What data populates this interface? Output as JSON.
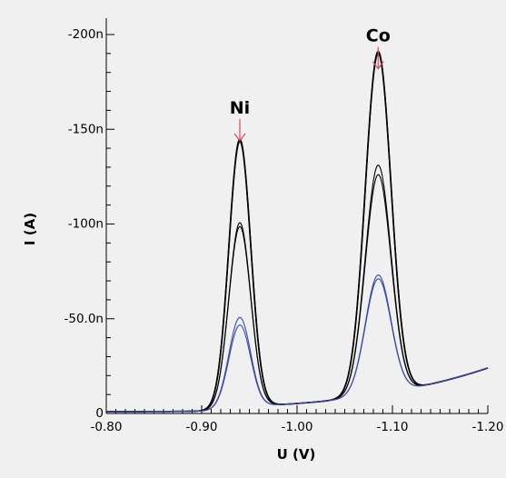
{
  "chart_data": {
    "type": "line",
    "xlabel": "U (V)",
    "ylabel": "I (A)",
    "xlim": [
      -0.8,
      -1.2
    ],
    "ylim": [
      0,
      -200
    ],
    "y_unit": "nA",
    "x_tick_labels": [
      "-0.80",
      "-0.90",
      "-1.00",
      "-1.10",
      "-1.20"
    ],
    "x_tick_values": [
      -0.8,
      -0.9,
      -1.0,
      -1.1,
      -1.2
    ],
    "y_tick_labels": [
      "0",
      "-50.0n",
      "-100n",
      "-150n",
      "-200n"
    ],
    "y_tick_values": [
      0,
      -50,
      -100,
      -150,
      -200
    ],
    "grid": false,
    "legend": "none",
    "annotations": [
      {
        "text": "Ni",
        "x": -0.94,
        "y": -143,
        "color": "#e0455a"
      },
      {
        "text": "Co",
        "x": -1.085,
        "y": -181,
        "color": "#e0455a"
      }
    ],
    "series": [
      {
        "color": "#000000",
        "peak1": -143,
        "peak2": -181,
        "x": [
          -0.8,
          -0.85,
          -0.88,
          -0.9,
          -0.92,
          -0.94,
          -0.96,
          -0.97,
          -1.0,
          -1.04,
          -1.06,
          -1.085,
          -1.11,
          -1.13,
          -1.16,
          -1.2
        ],
        "y": [
          -1,
          -3,
          -7,
          -20,
          -80,
          -143,
          -60,
          -5,
          -9,
          -45,
          -120,
          -181,
          -50,
          -12,
          -15,
          -22
        ]
      },
      {
        "color": "#000000",
        "peak1": -142,
        "peak2": -180,
        "x": [
          -0.8,
          -0.85,
          -0.88,
          -0.9,
          -0.92,
          -0.94,
          -0.96,
          -0.97,
          -1.0,
          -1.04,
          -1.06,
          -1.085,
          -1.11,
          -1.13,
          -1.16,
          -1.2
        ],
        "y": [
          -1,
          -3,
          -7,
          -19,
          -79,
          -142,
          -59,
          -5,
          -9,
          -44,
          -119,
          -180,
          -50,
          -12,
          -15,
          -22
        ]
      },
      {
        "color": "#000000",
        "peak1": -99,
        "peak2": -121,
        "x": [
          -0.8,
          -0.85,
          -0.88,
          -0.9,
          -0.92,
          -0.94,
          -0.96,
          -0.97,
          -1.0,
          -1.04,
          -1.06,
          -1.085,
          -1.11,
          -1.13,
          -1.16,
          -1.2
        ],
        "y": [
          -1,
          -3,
          -6,
          -15,
          -58,
          -99,
          -43,
          -5,
          -8,
          -33,
          -82,
          -121,
          -36,
          -11,
          -14,
          -22
        ]
      },
      {
        "color": "#000000",
        "peak1": -97,
        "peak2": -116,
        "x": [
          -0.8,
          -0.85,
          -0.88,
          -0.9,
          -0.92,
          -0.94,
          -0.96,
          -0.97,
          -1.0,
          -1.04,
          -1.06,
          -1.085,
          -1.11,
          -1.13,
          -1.16,
          -1.2
        ],
        "y": [
          -1,
          -3,
          -6,
          -15,
          -56,
          -97,
          -42,
          -5,
          -8,
          -32,
          -79,
          -116,
          -35,
          -11,
          -14,
          -22
        ]
      },
      {
        "color": "#3a4aa6",
        "peak1": -49,
        "peak2": -63,
        "x": [
          -0.8,
          -0.85,
          -0.88,
          -0.9,
          -0.92,
          -0.94,
          -0.96,
          -0.97,
          -1.0,
          -1.04,
          -1.06,
          -1.085,
          -1.11,
          -1.13,
          -1.16,
          -1.2
        ],
        "y": [
          -1,
          -2,
          -4,
          -9,
          -29,
          -49,
          -22,
          -4,
          -6,
          -18,
          -43,
          -63,
          -22,
          -10,
          -14,
          -21
        ]
      },
      {
        "color": "#3a4aa6",
        "peak1": -45,
        "peak2": -61,
        "x": [
          -0.8,
          -0.85,
          -0.88,
          -0.9,
          -0.92,
          -0.94,
          -0.96,
          -0.97,
          -1.0,
          -1.04,
          -1.06,
          -1.085,
          -1.11,
          -1.13,
          -1.16,
          -1.2
        ],
        "y": [
          -1,
          -2,
          -4,
          -8,
          -27,
          -45,
          -20,
          -4,
          -6,
          -17,
          -41,
          -61,
          -21,
          -10,
          -14,
          -21
        ]
      }
    ]
  }
}
